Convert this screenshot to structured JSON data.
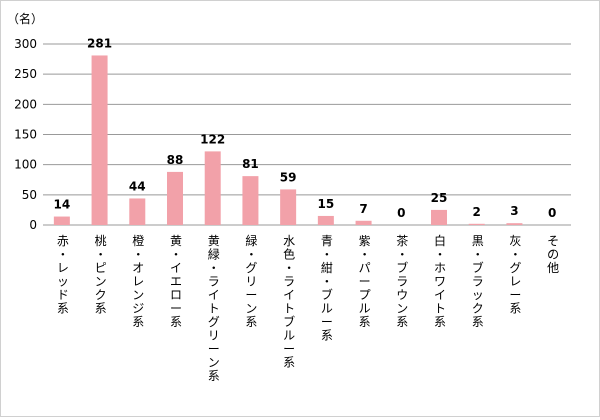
{
  "chart_data": {
    "type": "bar",
    "unit_label": "（名）",
    "categories": [
      "赤・レッド系",
      "桃・ピンク系",
      "橙・オレンジ系",
      "黄・イエロー系",
      "黄緑・ライトグリーン系",
      "緑・グリーン系",
      "水色・ライトブルー系",
      "青・紺・ブルー系",
      "紫・パープル系",
      "茶・ブラウン系",
      "白・ホワイト系",
      "黒・ブラック系",
      "灰・グレー系",
      "その他"
    ],
    "values": [
      14,
      281,
      44,
      88,
      122,
      81,
      59,
      15,
      7,
      0,
      25,
      2,
      3,
      0
    ],
    "ylim": [
      0,
      300
    ],
    "yticks": [
      0,
      50,
      100,
      150,
      200,
      250,
      300
    ],
    "grid": true,
    "bar_color": "#f2a1a9",
    "title": "",
    "xlabel": "",
    "ylabel": ""
  }
}
